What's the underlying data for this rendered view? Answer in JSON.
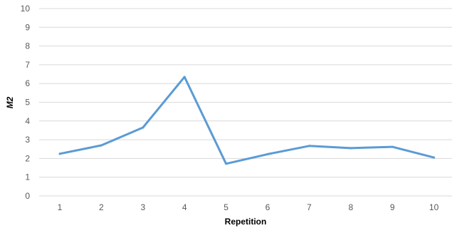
{
  "chart_data": {
    "type": "line",
    "categories": [
      "1",
      "2",
      "3",
      "4",
      "5",
      "6",
      "7",
      "8",
      "9",
      "10"
    ],
    "series": [
      {
        "values": [
          2.25,
          2.7,
          3.65,
          6.35,
          1.72,
          2.23,
          2.67,
          2.55,
          2.62,
          2.05
        ],
        "color": "#5b9bd5"
      }
    ],
    "xlabel": "Repetition",
    "ylabel": "M2",
    "ylim": [
      0,
      10
    ],
    "y_ticks": [
      "0",
      "1",
      "2",
      "3",
      "4",
      "5",
      "6",
      "7",
      "8",
      "9",
      "10"
    ],
    "grid": true,
    "legend": "none"
  }
}
